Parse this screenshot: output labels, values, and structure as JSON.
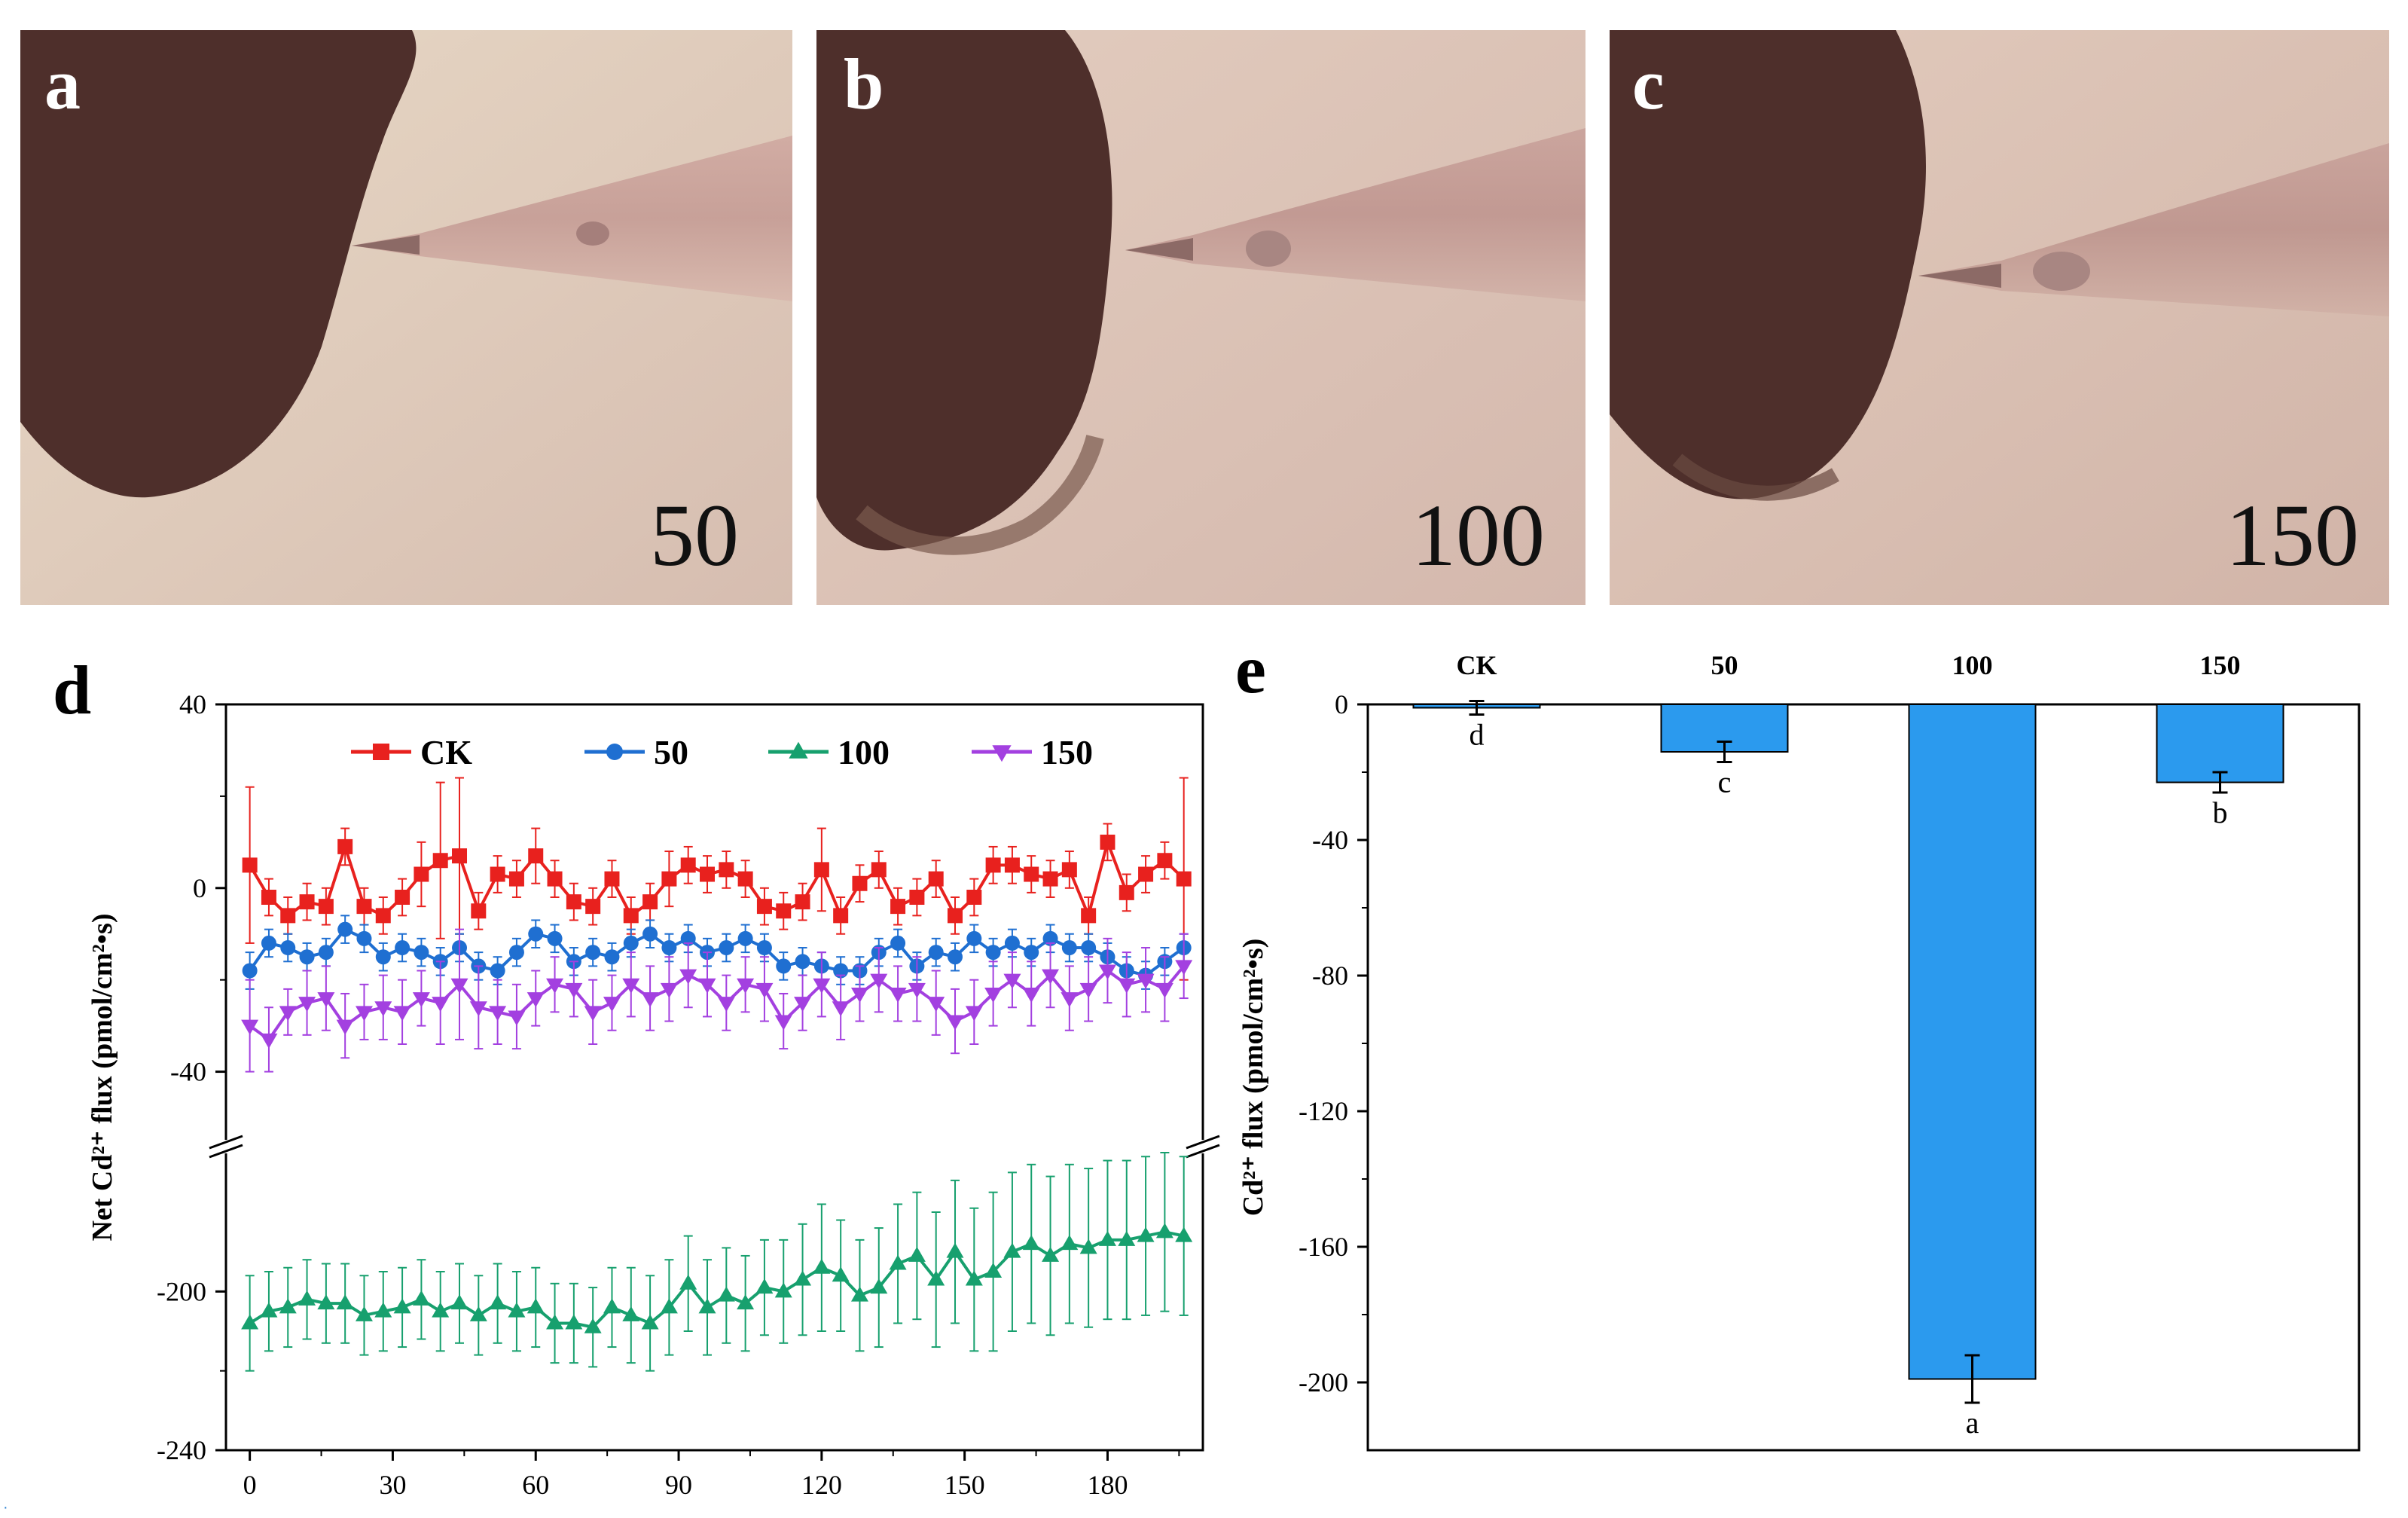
{
  "panels": {
    "a": {
      "label": "a",
      "concentration": "50"
    },
    "b": {
      "label": "b",
      "concentration": "100"
    },
    "c": {
      "label": "c",
      "concentration": "150"
    },
    "d": {
      "label": "d"
    },
    "e": {
      "label": "e"
    }
  },
  "colors": {
    "CK": "#e8211e",
    "50": "#1f6fd1",
    "100": "#17a06e",
    "150": "#a340e0",
    "bar": "#2b9aee",
    "photo_bg": "#d9bfb2",
    "root": "#4e2f2b"
  },
  "chart_data": [
    {
      "id": "d",
      "type": "line",
      "title": "",
      "xlabel": "",
      "ylabel": "Net Cd²⁺ flux (pmol/cm²•s)",
      "x_ticks": [
        "0",
        "30",
        "60",
        "90",
        "120",
        "150",
        "180"
      ],
      "y_ticks": [
        "40",
        "0",
        "-40",
        "-200",
        "-240"
      ],
      "xlim": [
        -5,
        200
      ],
      "y_axis_break": {
        "upper_segment": [
          -55,
          40
        ],
        "lower_segment": [
          -240,
          -165
        ]
      },
      "legend": [
        "CK",
        "50",
        "100",
        "150"
      ],
      "legend_position": "top",
      "series": [
        {
          "name": "CK",
          "marker": "square",
          "x": [
            0,
            4,
            8,
            12,
            16,
            20,
            24,
            28,
            32,
            36,
            40,
            44,
            48,
            52,
            56,
            60,
            64,
            68,
            72,
            76,
            80,
            84,
            88,
            92,
            96,
            100,
            104,
            108,
            112,
            116,
            120,
            124,
            128,
            132,
            136,
            140,
            144,
            148,
            152,
            156,
            160,
            164,
            168,
            172,
            176,
            180,
            184,
            188,
            192,
            196
          ],
          "y": [
            5,
            -2,
            -6,
            -3,
            -4,
            9,
            -4,
            -6,
            -2,
            3,
            6,
            7,
            -5,
            3,
            2,
            7,
            2,
            -3,
            -4,
            2,
            -6,
            -3,
            2,
            5,
            3,
            4,
            2,
            -4,
            -5,
            -3,
            4,
            -6,
            1,
            4,
            -4,
            -2,
            2,
            -6,
            -2,
            5,
            5,
            3,
            2,
            4,
            -6,
            10,
            -1,
            3,
            6,
            2
          ],
          "err": [
            17,
            4,
            4,
            4,
            4,
            4,
            4,
            4,
            4,
            7,
            17,
            17,
            4,
            4,
            4,
            6,
            4,
            4,
            4,
            4,
            4,
            4,
            6,
            4,
            4,
            4,
            4,
            4,
            4,
            4,
            9,
            4,
            4,
            4,
            4,
            4,
            4,
            4,
            4,
            4,
            4,
            4,
            4,
            4,
            4,
            4,
            4,
            4,
            4,
            22
          ]
        },
        {
          "name": "50",
          "marker": "circle",
          "x": [
            0,
            4,
            8,
            12,
            16,
            20,
            24,
            28,
            32,
            36,
            40,
            44,
            48,
            52,
            56,
            60,
            64,
            68,
            72,
            76,
            80,
            84,
            88,
            92,
            96,
            100,
            104,
            108,
            112,
            116,
            120,
            124,
            128,
            132,
            136,
            140,
            144,
            148,
            152,
            156,
            160,
            164,
            168,
            172,
            176,
            180,
            184,
            188,
            192,
            196
          ],
          "y": [
            -18,
            -12,
            -13,
            -15,
            -14,
            -9,
            -11,
            -15,
            -13,
            -14,
            -16,
            -13,
            -17,
            -18,
            -14,
            -10,
            -11,
            -16,
            -14,
            -15,
            -12,
            -10,
            -13,
            -11,
            -14,
            -13,
            -11,
            -13,
            -17,
            -16,
            -17,
            -18,
            -18,
            -14,
            -12,
            -17,
            -14,
            -15,
            -11,
            -14,
            -12,
            -14,
            -11,
            -13,
            -13,
            -15,
            -18,
            -19,
            -16,
            -13
          ],
          "err": [
            4,
            3,
            3,
            3,
            3,
            3,
            3,
            3,
            3,
            3,
            3,
            3,
            3,
            3,
            3,
            3,
            3,
            3,
            3,
            3,
            3,
            3,
            3,
            3,
            3,
            3,
            3,
            3,
            3,
            3,
            3,
            3,
            3,
            3,
            3,
            3,
            3,
            3,
            3,
            3,
            3,
            3,
            3,
            3,
            3,
            3,
            3,
            3,
            3,
            3
          ]
        },
        {
          "name": "100",
          "marker": "triangle-up",
          "x": [
            0,
            4,
            8,
            12,
            16,
            20,
            24,
            28,
            32,
            36,
            40,
            44,
            48,
            52,
            56,
            60,
            64,
            68,
            72,
            76,
            80,
            84,
            88,
            92,
            96,
            100,
            104,
            108,
            112,
            116,
            120,
            124,
            128,
            132,
            136,
            140,
            144,
            148,
            152,
            156,
            160,
            164,
            168,
            172,
            176,
            180,
            184,
            188,
            192,
            196
          ],
          "y": [
            -208,
            -205,
            -204,
            -202,
            -203,
            -203,
            -206,
            -205,
            -204,
            -202,
            -205,
            -203,
            -206,
            -203,
            -205,
            -204,
            -208,
            -208,
            -209,
            -204,
            -206,
            -208,
            -204,
            -198,
            -204,
            -201,
            -203,
            -199,
            -200,
            -197,
            -194,
            -196,
            -201,
            -199,
            -193,
            -191,
            -197,
            -190,
            -197,
            -195,
            -190,
            -188,
            -191,
            -188,
            -189,
            -187,
            -187,
            -186,
            -185,
            -186
          ],
          "err": [
            12,
            10,
            10,
            10,
            10,
            10,
            10,
            10,
            10,
            10,
            10,
            10,
            10,
            10,
            10,
            10,
            10,
            10,
            10,
            10,
            12,
            12,
            12,
            12,
            12,
            12,
            12,
            12,
            13,
            14,
            16,
            14,
            14,
            15,
            15,
            16,
            17,
            18,
            18,
            20,
            20,
            20,
            20,
            20,
            20,
            20,
            20,
            20,
            20,
            20
          ]
        },
        {
          "name": "150",
          "marker": "triangle-down",
          "x": [
            0,
            4,
            8,
            12,
            16,
            20,
            24,
            28,
            32,
            36,
            40,
            44,
            48,
            52,
            56,
            60,
            64,
            68,
            72,
            76,
            80,
            84,
            88,
            92,
            96,
            100,
            104,
            108,
            112,
            116,
            120,
            124,
            128,
            132,
            136,
            140,
            144,
            148,
            152,
            156,
            160,
            164,
            168,
            172,
            176,
            180,
            184,
            188,
            192,
            196
          ],
          "y": [
            -30,
            -33,
            -27,
            -25,
            -24,
            -30,
            -27,
            -26,
            -27,
            -24,
            -25,
            -21,
            -26,
            -27,
            -28,
            -24,
            -21,
            -22,
            -27,
            -25,
            -21,
            -24,
            -22,
            -19,
            -21,
            -25,
            -21,
            -22,
            -29,
            -25,
            -21,
            -26,
            -23,
            -20,
            -23,
            -22,
            -25,
            -29,
            -27,
            -23,
            -20,
            -23,
            -19,
            -24,
            -22,
            -18,
            -21,
            -20,
            -22,
            -17
          ],
          "err": [
            10,
            7,
            5,
            7,
            7,
            7,
            6,
            7,
            7,
            6,
            9,
            12,
            9,
            7,
            7,
            6,
            6,
            6,
            7,
            6,
            7,
            7,
            7,
            7,
            7,
            6,
            6,
            7,
            6,
            6,
            7,
            7,
            6,
            7,
            6,
            7,
            7,
            7,
            7,
            7,
            6,
            7,
            7,
            7,
            7,
            7,
            7,
            7,
            7,
            7
          ]
        }
      ]
    },
    {
      "id": "e",
      "type": "bar",
      "title": "",
      "xlabel": "",
      "ylabel": "Cd²⁺ flux (pmol/cm²•s)",
      "categories": [
        "CK",
        "50",
        "100",
        "150"
      ],
      "values": [
        -1,
        -14,
        -199,
        -23
      ],
      "errors": [
        2,
        3,
        7,
        3
      ],
      "significance": [
        "d",
        "c",
        "a",
        "b"
      ],
      "y_ticks": [
        "0",
        "-40",
        "-80",
        "-120",
        "-160",
        "-200"
      ],
      "ylim": [
        -220,
        0
      ]
    }
  ]
}
